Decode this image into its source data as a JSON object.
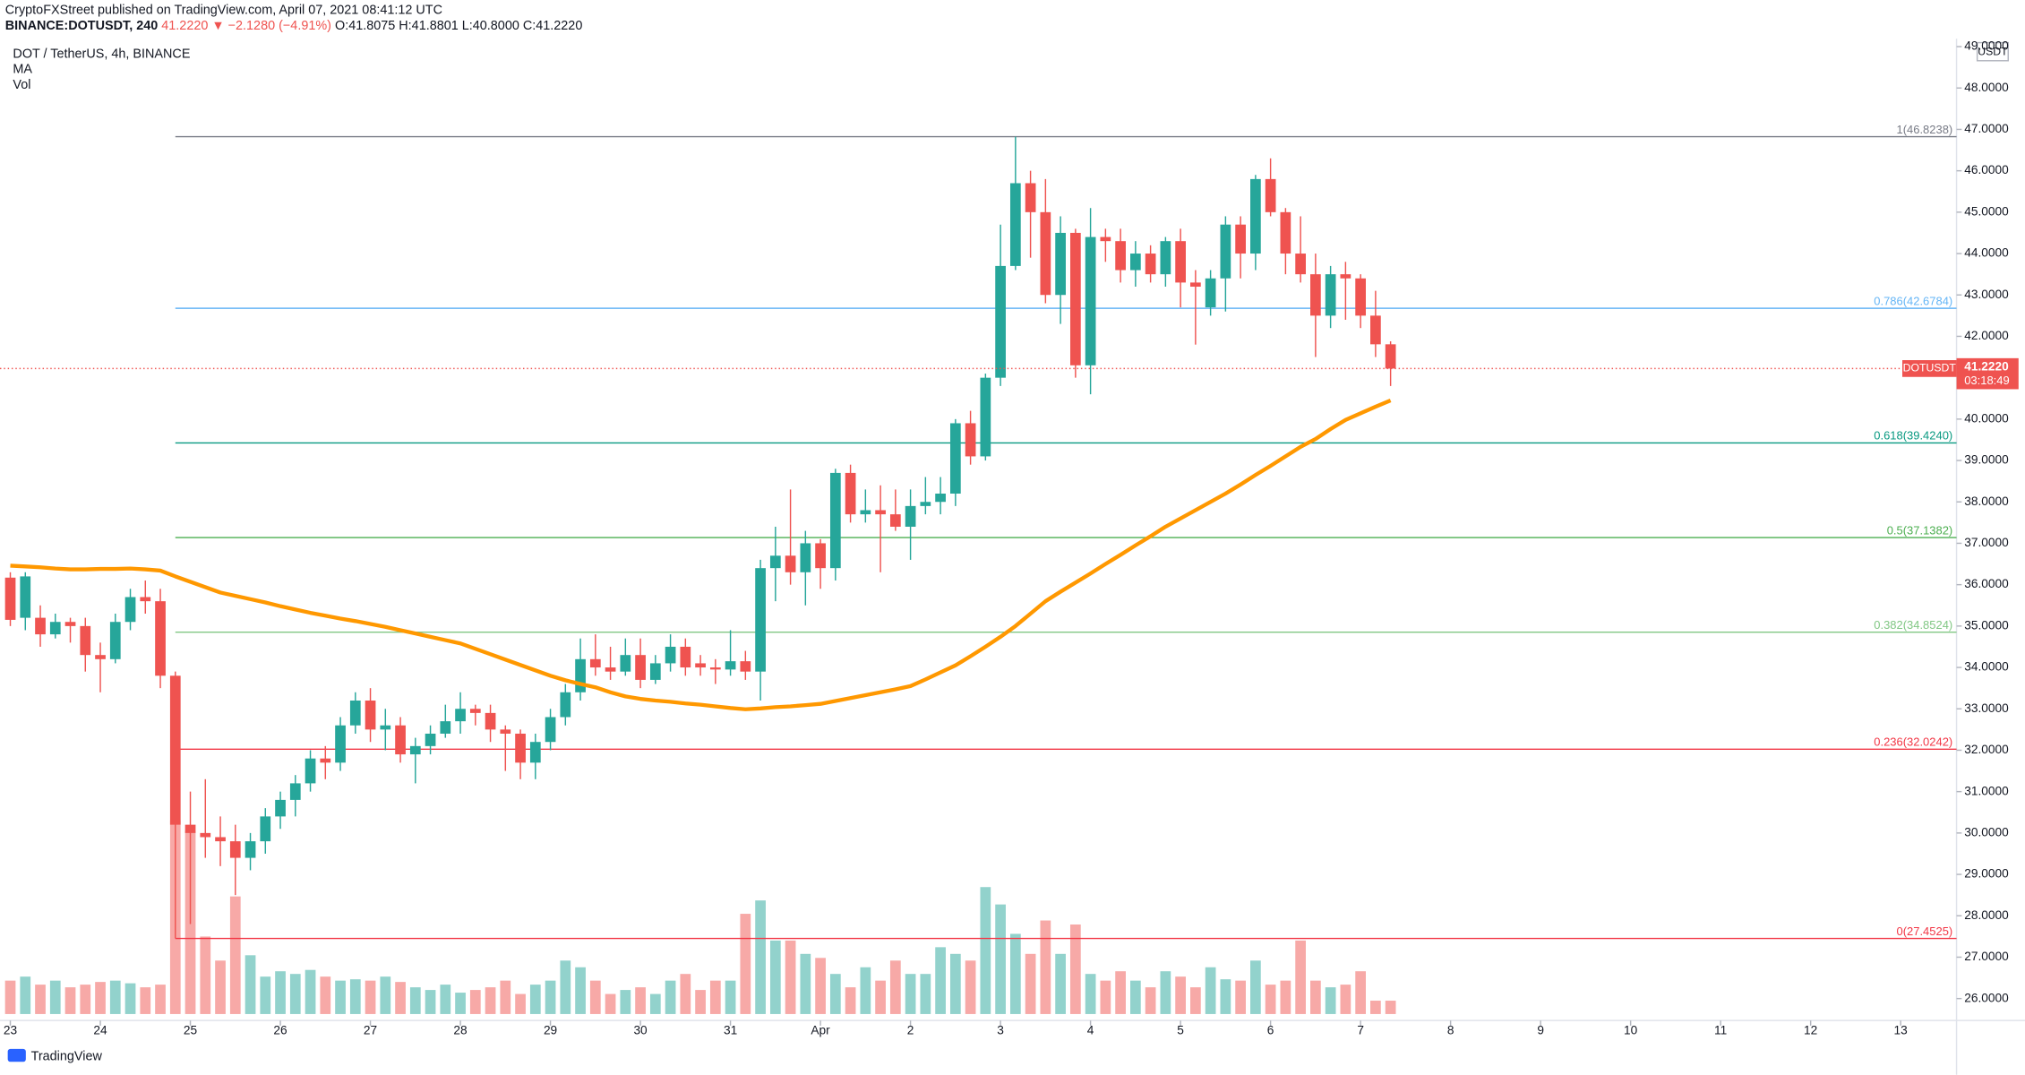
{
  "header": {
    "published": "CryptoFXStreet published on TradingView.com, April 07, 2021 08:41:12 UTC",
    "ticker": "BINANCE:DOTUSDT, 240",
    "last_change": "41.2220 ▼ −2.1280 (−4.91%)",
    "ohlc": "O:41.8075 H:41.8801 L:40.8000 C:41.2220",
    "symbol": "DOT / TetherUS, 4h, BINANCE",
    "indicators": [
      "MA",
      "Vol"
    ],
    "currency": "USDT",
    "logo": "TradingView"
  },
  "chart_data": {
    "type": "candlestick",
    "x": [
      0,
      4,
      8,
      12,
      16,
      20,
      24,
      28,
      32,
      36,
      40,
      44,
      48,
      52,
      56,
      60,
      64,
      68,
      72,
      76,
      80,
      84,
      88,
      92,
      96,
      100,
      104,
      108,
      112,
      116,
      120,
      124,
      128,
      132,
      136,
      140,
      144,
      148,
      152,
      156,
      160,
      164,
      168,
      172,
      176,
      180,
      184,
      188,
      192,
      196,
      200,
      204,
      208,
      212,
      216,
      220,
      224,
      228,
      232,
      236,
      240,
      244,
      248,
      252,
      256,
      260,
      264,
      268,
      272,
      276,
      280,
      284,
      288,
      292,
      296,
      300,
      304,
      308,
      312,
      316,
      320,
      324,
      328,
      332,
      336,
      340,
      344,
      348,
      352,
      356,
      360,
      364,
      368
    ],
    "open": [
      36.17,
      35.2,
      35.2,
      34.8,
      35.1,
      35.0,
      34.3,
      34.2,
      35.1,
      35.7,
      35.6,
      33.8,
      30.2,
      30.0,
      29.9,
      29.8,
      29.4,
      29.8,
      30.4,
      30.8,
      31.2,
      31.8,
      31.7,
      32.6,
      33.2,
      32.5,
      32.6,
      31.9,
      32.1,
      32.4,
      32.7,
      33.0,
      32.9,
      32.5,
      32.4,
      31.7,
      32.2,
      32.8,
      33.4,
      34.2,
      34.0,
      33.9,
      34.3,
      33.7,
      34.1,
      34.5,
      34.1,
      34.0,
      33.95,
      34.15,
      33.9,
      36.4,
      36.7,
      36.3,
      37.0,
      36.4,
      38.7,
      37.7,
      37.8,
      37.7,
      37.4,
      37.9,
      38.0,
      38.2,
      39.9,
      39.1,
      41.0,
      43.7,
      45.7,
      45.0,
      43.0,
      44.5,
      41.3,
      44.4,
      44.3,
      43.6,
      44.0,
      43.5,
      44.3,
      43.3,
      42.7,
      43.4,
      44.7,
      44.0,
      45.8,
      45.0,
      44.0,
      43.5,
      42.5,
      43.5,
      43.4,
      42.5,
      41.8075
    ],
    "high": [
      36.3,
      36.3,
      35.5,
      35.3,
      35.2,
      35.2,
      34.6,
      35.3,
      35.9,
      36.1,
      35.9,
      33.9,
      31.0,
      31.3,
      30.4,
      30.2,
      30.0,
      30.6,
      31.0,
      31.4,
      32.0,
      32.1,
      32.8,
      33.4,
      33.5,
      33.0,
      32.8,
      32.3,
      32.6,
      33.1,
      33.4,
      33.1,
      33.1,
      32.6,
      32.5,
      32.4,
      33.0,
      33.6,
      34.7,
      34.8,
      34.5,
      34.7,
      34.7,
      34.3,
      34.8,
      34.7,
      34.3,
      34.2,
      34.9,
      34.4,
      36.6,
      37.4,
      38.3,
      37.3,
      37.1,
      38.8,
      38.9,
      38.3,
      38.4,
      38.3,
      38.3,
      38.6,
      38.6,
      40.0,
      40.2,
      41.1,
      44.7,
      46.8238,
      46.0,
      45.8,
      44.9,
      44.6,
      45.1,
      44.6,
      44.6,
      44.3,
      44.2,
      44.4,
      44.6,
      43.6,
      43.6,
      44.9,
      44.9,
      45.9,
      46.3,
      45.1,
      44.9,
      44.0,
      43.7,
      43.8,
      43.5,
      43.1,
      41.8801
    ],
    "low": [
      35.0,
      34.9,
      34.5,
      34.7,
      34.6,
      33.9,
      33.4,
      34.1,
      34.9,
      35.3,
      33.5,
      27.4525,
      27.8,
      29.4,
      29.2,
      28.5,
      29.1,
      29.5,
      30.1,
      30.4,
      31.0,
      31.3,
      31.5,
      32.4,
      32.2,
      32.0,
      31.7,
      31.2,
      31.9,
      32.3,
      32.4,
      32.6,
      32.2,
      31.5,
      31.3,
      31.3,
      32.0,
      32.6,
      33.2,
      33.8,
      33.7,
      33.8,
      33.5,
      33.6,
      33.9,
      33.8,
      33.8,
      33.6,
      33.8,
      33.7,
      33.2,
      35.6,
      36.0,
      35.5,
      35.9,
      36.1,
      37.5,
      37.5,
      36.3,
      37.3,
      36.6,
      37.7,
      37.7,
      37.9,
      38.9,
      39.0,
      40.8,
      43.6,
      43.9,
      42.8,
      42.3,
      41.0,
      40.6,
      43.8,
      43.3,
      43.2,
      43.3,
      43.2,
      42.7,
      41.8,
      42.5,
      42.6,
      43.4,
      43.6,
      44.9,
      43.5,
      43.3,
      41.5,
      42.2,
      42.4,
      42.2,
      41.5,
      40.8
    ],
    "close": [
      35.15,
      36.2,
      34.8,
      35.1,
      35.0,
      34.3,
      34.2,
      35.1,
      35.7,
      35.6,
      33.8,
      30.2,
      30.0,
      29.9,
      29.8,
      29.4,
      29.8,
      30.4,
      30.8,
      31.2,
      31.8,
      31.7,
      32.6,
      33.2,
      32.5,
      32.6,
      31.9,
      32.1,
      32.4,
      32.7,
      33.0,
      32.9,
      32.5,
      32.4,
      31.7,
      32.2,
      32.8,
      33.4,
      34.2,
      34.0,
      33.9,
      34.3,
      33.7,
      34.1,
      34.5,
      34.0,
      34.0,
      33.95,
      34.15,
      33.9,
      36.4,
      36.7,
      36.3,
      37.0,
      36.4,
      38.7,
      37.7,
      37.8,
      37.7,
      37.4,
      37.9,
      38.0,
      38.2,
      39.9,
      39.1,
      41.0,
      43.7,
      45.7,
      45.0,
      43.0,
      44.5,
      41.3,
      44.4,
      44.3,
      43.6,
      44.0,
      43.5,
      44.3,
      43.3,
      43.2,
      43.4,
      44.7,
      44.0,
      45.8,
      45.0,
      44.0,
      43.5,
      42.5,
      43.5,
      43.4,
      42.5,
      41.8075,
      41.222
    ],
    "volume": [
      25,
      28,
      22,
      25,
      20,
      22,
      24,
      25,
      23,
      20,
      22,
      145,
      137,
      58,
      40,
      88,
      44,
      28,
      32,
      30,
      33,
      28,
      25,
      26,
      25,
      28,
      24,
      20,
      18,
      22,
      16,
      18,
      20,
      25,
      15,
      22,
      25,
      40,
      35,
      25,
      15,
      18,
      20,
      15,
      25,
      30,
      18,
      25,
      25,
      75,
      85,
      55,
      55,
      45,
      42,
      30,
      20,
      35,
      25,
      40,
      30,
      30,
      50,
      45,
      40,
      95,
      82,
      60,
      45,
      70,
      45,
      67,
      30,
      25,
      32,
      25,
      20,
      32,
      28,
      20,
      35,
      26,
      25,
      40,
      22,
      25,
      55,
      25,
      20,
      22,
      32,
      10,
      10
    ],
    "up_color": "#26a69a",
    "down_color": "#ef5350",
    "ma": {
      "name": "MA",
      "color": "#ff9800",
      "values": [
        36.46,
        36.44,
        36.42,
        36.39,
        36.37,
        36.37,
        36.38,
        36.38,
        36.39,
        36.37,
        36.34,
        36.2,
        36.07,
        35.94,
        35.81,
        35.73,
        35.65,
        35.57,
        35.48,
        35.4,
        35.32,
        35.25,
        35.18,
        35.12,
        35.05,
        34.98,
        34.9,
        34.82,
        34.74,
        34.66,
        34.58,
        34.45,
        34.32,
        34.19,
        34.06,
        33.93,
        33.8,
        33.69,
        33.6,
        33.52,
        33.4,
        33.3,
        33.24,
        33.2,
        33.17,
        33.13,
        33.1,
        33.06,
        33.02,
        32.99,
        33.01,
        33.04,
        33.06,
        33.09,
        33.12,
        33.19,
        33.26,
        33.33,
        33.4,
        33.47,
        33.55,
        33.71,
        33.88,
        34.05,
        34.27,
        34.5,
        34.74,
        35.0,
        35.3,
        35.6,
        35.83,
        36.05,
        36.27,
        36.5,
        36.72,
        36.95,
        37.17,
        37.4,
        37.6,
        37.8,
        38.0,
        38.2,
        38.42,
        38.65,
        38.87,
        39.1,
        39.33,
        39.52,
        39.76,
        39.98,
        40.14,
        40.3,
        40.45
      ]
    },
    "levels_from_x": 44,
    "levels": [
      {
        "value": 46.8238,
        "label": "1(46.8238)",
        "color": "#787b86"
      },
      {
        "value": 42.6784,
        "label": "0.786(42.6784)",
        "color": "#64b5f6"
      },
      {
        "value": 39.424,
        "label": "0.618(39.4240)",
        "color": "#089981"
      },
      {
        "value": 37.1382,
        "label": "0.5(37.1382)",
        "color": "#4caf50"
      },
      {
        "value": 34.8524,
        "label": "0.382(34.8524)",
        "color": "#81c784"
      },
      {
        "value": 32.0242,
        "label": "0.236(32.0242)",
        "color": "#f23645"
      },
      {
        "value": 27.4525,
        "label": "0(27.4525)",
        "color": "#f23645"
      }
    ],
    "last_price": {
      "value": 41.222,
      "label": "41.2220",
      "symbol": "DOTUSDT",
      "countdown": "03:18:49"
    },
    "xlim": [
      -2.75,
      518.9
    ],
    "xticks": [
      {
        "value": 0,
        "label": "23"
      },
      {
        "value": 24,
        "label": "24"
      },
      {
        "value": 48,
        "label": "25"
      },
      {
        "value": 72,
        "label": "26"
      },
      {
        "value": 96,
        "label": "27"
      },
      {
        "value": 120,
        "label": "28"
      },
      {
        "value": 144,
        "label": "29"
      },
      {
        "value": 168,
        "label": "30"
      },
      {
        "value": 192,
        "label": "31"
      },
      {
        "value": 216,
        "label": "Apr"
      },
      {
        "value": 240,
        "label": "2"
      },
      {
        "value": 264,
        "label": "3"
      },
      {
        "value": 288,
        "label": "4"
      },
      {
        "value": 312,
        "label": "5"
      },
      {
        "value": 336,
        "label": "6"
      },
      {
        "value": 360,
        "label": "7"
      },
      {
        "value": 384,
        "label": "8"
      },
      {
        "value": 408,
        "label": "9"
      },
      {
        "value": 432,
        "label": "10"
      },
      {
        "value": 456,
        "label": "11"
      },
      {
        "value": 480,
        "label": "12"
      },
      {
        "value": 504,
        "label": "13"
      }
    ],
    "ylim": [
      25.47,
      49.19
    ],
    "yticks": [
      {
        "value": 26,
        "label": "26.0000"
      },
      {
        "value": 27,
        "label": "27.0000"
      },
      {
        "value": 28,
        "label": "28.0000"
      },
      {
        "value": 29,
        "label": "29.0000"
      },
      {
        "value": 30,
        "label": "30.0000"
      },
      {
        "value": 31,
        "label": "31.0000"
      },
      {
        "value": 32,
        "label": "32.0000"
      },
      {
        "value": 33,
        "label": "33.0000"
      },
      {
        "value": 34,
        "label": "34.0000"
      },
      {
        "value": 35,
        "label": "35.0000"
      },
      {
        "value": 36,
        "label": "36.0000"
      },
      {
        "value": 37,
        "label": "37.0000"
      },
      {
        "value": 38,
        "label": "38.0000"
      },
      {
        "value": 39,
        "label": "39.0000"
      },
      {
        "value": 40,
        "label": "40.0000"
      },
      {
        "value": 41,
        "label": "41.0000"
      },
      {
        "value": 42,
        "label": "42.0000"
      },
      {
        "value": 43,
        "label": "43.0000"
      },
      {
        "value": 44,
        "label": "44.0000"
      },
      {
        "value": 45,
        "label": "45.0000"
      },
      {
        "value": 46,
        "label": "46.0000"
      },
      {
        "value": 47,
        "label": "47.0000"
      },
      {
        "value": 48,
        "label": "48.0000"
      },
      {
        "value": 49,
        "label": "49.0000"
      }
    ]
  }
}
